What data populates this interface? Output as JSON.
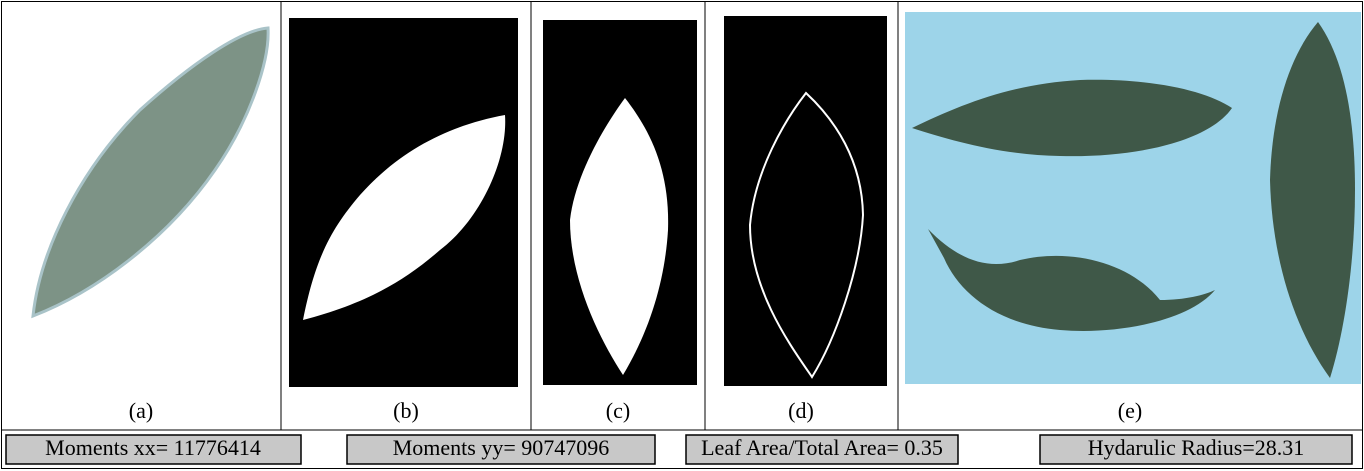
{
  "panels": [
    {
      "caption": "(a)"
    },
    {
      "caption": "(b)"
    },
    {
      "caption": "(c)"
    },
    {
      "caption": "(d)"
    },
    {
      "caption": "(e)"
    }
  ],
  "measurements": [
    "Moments xx=  11776414",
    "Moments yy= 90747096",
    "Leaf Area/Total Area= 0.35",
    "Hydarulic Radius=28.31"
  ]
}
